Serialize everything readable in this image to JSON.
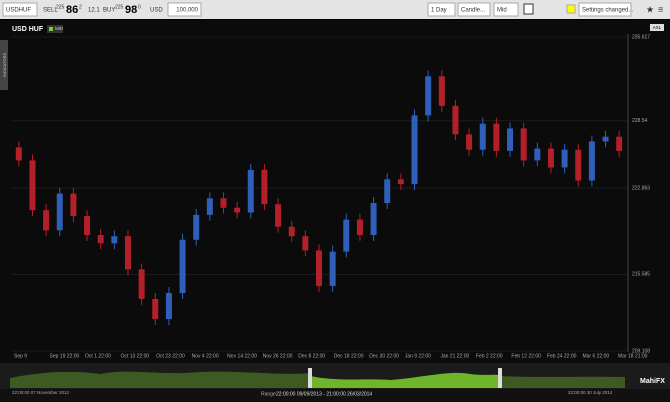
{
  "toolbar": {
    "symbol": "USDHUF",
    "sell_label": "SELL",
    "sell_big": "225",
    "sell_pips": "86",
    "sell_frac": "2",
    "spread": "12.1",
    "buy_label": "BUY",
    "buy_big": "225",
    "buy_pips": "98",
    "buy_frac": "0",
    "currency": "USD",
    "amount": "100,000",
    "period": "1 Day",
    "chart_style": "Candle...",
    "price_type": "Mid",
    "settings": "Settings changed..."
  },
  "chart_data": {
    "type": "candlestick",
    "title": "USD HUF",
    "badge": "MID",
    "side_tab": "INDICATORS",
    "corner": "AXL",
    "open": [
      226.3,
      225.2,
      221.0,
      219.3,
      222.4,
      220.5,
      218.9,
      218.2,
      218.8,
      216.0,
      213.5,
      211.8,
      214.0,
      218.5,
      220.6,
      222.0,
      221.2,
      220.8,
      224.4,
      221.5,
      219.6,
      218.8,
      217.6,
      214.6,
      217.5,
      220.2,
      218.9,
      221.6,
      223.6,
      223.2,
      229.0,
      232.3,
      229.8,
      227.4,
      226.1,
      228.3,
      226.0,
      227.9,
      225.2,
      226.2,
      224.6,
      226.1,
      223.5,
      226.8,
      227.2
    ],
    "high": [
      226.8,
      225.7,
      221.5,
      222.9,
      222.9,
      221.0,
      219.4,
      219.3,
      219.3,
      216.5,
      214.0,
      214.5,
      219.0,
      221.1,
      222.5,
      222.5,
      221.7,
      224.9,
      224.9,
      222.0,
      220.1,
      219.3,
      218.1,
      218.0,
      220.7,
      220.7,
      222.1,
      224.1,
      224.1,
      229.5,
      232.8,
      232.8,
      230.3,
      227.9,
      228.8,
      228.8,
      228.4,
      228.4,
      226.7,
      226.7,
      226.6,
      226.6,
      227.3,
      227.7,
      227.7
    ],
    "low": [
      224.7,
      220.5,
      218.8,
      218.8,
      220.0,
      218.4,
      217.7,
      217.7,
      215.5,
      213.0,
      211.3,
      211.3,
      213.5,
      218.0,
      220.1,
      220.7,
      220.3,
      220.3,
      221.0,
      219.1,
      218.3,
      217.1,
      214.1,
      214.1,
      217.0,
      218.4,
      218.4,
      221.1,
      222.7,
      222.7,
      228.5,
      229.3,
      226.9,
      225.6,
      225.6,
      225.5,
      225.5,
      224.7,
      224.7,
      224.1,
      224.1,
      223.0,
      223.0,
      226.3,
      225.5
    ],
    "close": [
      225.2,
      221.0,
      219.3,
      222.4,
      220.5,
      218.9,
      218.2,
      218.8,
      216.0,
      213.5,
      211.8,
      214.0,
      218.5,
      220.6,
      222.0,
      221.2,
      220.8,
      224.4,
      221.5,
      219.6,
      218.8,
      217.6,
      214.6,
      217.5,
      220.2,
      218.9,
      221.6,
      223.6,
      223.2,
      229.0,
      232.3,
      229.8,
      227.4,
      226.1,
      228.3,
      226.0,
      227.9,
      225.2,
      226.2,
      224.6,
      226.1,
      223.5,
      226.8,
      227.2,
      226.0
    ],
    "up_color": "#2f5fb8",
    "down_color": "#b3202a",
    "ylim": [
      209.108,
      235.617
    ],
    "yticks": [
      209.108,
      215.585,
      222.863,
      228.54,
      235.617
    ],
    "grid": true,
    "x_labels": [
      "Sep 9",
      "Sep 19 22:00",
      "Oct 1 22:00",
      "Oct 13 22:00",
      "Oct 23 22:00",
      "Nov 4 22:00",
      "Nov 14 22:00",
      "Nov 26 22:00",
      "Dec 8 22:00",
      "Dec 18 22:00",
      "Dec 30 22:00",
      "Jan 9 22:00",
      "Jan 21 22:00",
      "Feb 2 22:00",
      "Feb 12 22:00",
      "Feb 24 22:00",
      "Mar 6 22:00",
      "Mar 18 21:00"
    ]
  },
  "navigator": {
    "start": "22:00:00 07 November 2012",
    "range_label": "Range",
    "range": "22:00:00 09/09/2013 - 21:00:00 26/03/2014",
    "end": "22:00:00 30 July 2014",
    "brand": "MahiFX"
  }
}
